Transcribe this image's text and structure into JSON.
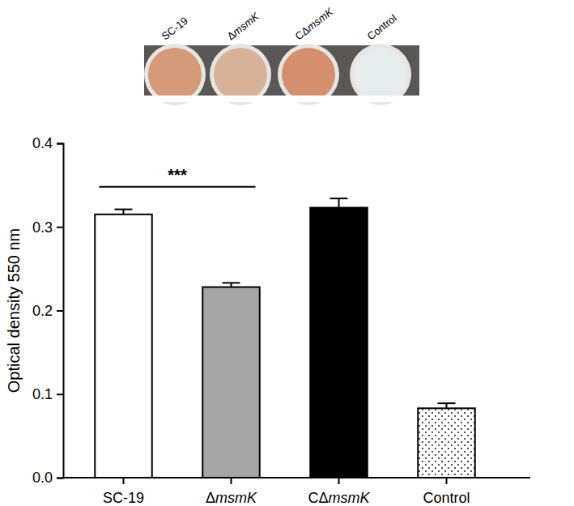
{
  "chart_data": {
    "type": "bar",
    "y_label": "Optical density 550 nm",
    "categories": [
      "SC-19",
      "ΔmsmK",
      "CΔmsmK",
      "Control"
    ],
    "values": [
      0.315,
      0.228,
      0.323,
      0.083
    ],
    "errors": [
      0.006,
      0.005,
      0.011,
      0.006
    ],
    "colors": [
      "#ffffff",
      "#a6a6a6",
      "#000000",
      "#ffffff"
    ],
    "ylim": [
      0,
      0.4
    ],
    "yticks": [
      {
        "value": 0,
        "label": "0.0"
      },
      0.1,
      0.2,
      0.3,
      0.4
    ],
    "grid": false,
    "annotations": [
      {
        "text": "***",
        "categories": [
          "SC-19",
          "ΔmsmK"
        ],
        "y": 0.348
      }
    ]
  }
}
